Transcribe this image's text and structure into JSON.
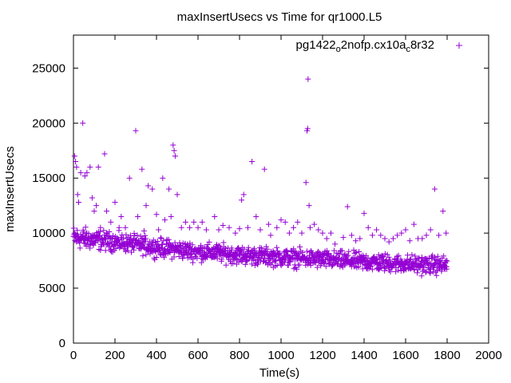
{
  "chart_data": {
    "type": "scatter",
    "title": "maxInsertUsecs vs Time for qr1000.L5",
    "xlabel": "Time(s)",
    "ylabel": "maxInsertUsecs",
    "xlim": [
      0,
      2000
    ],
    "ylim": [
      0,
      28000
    ],
    "xticks": [
      "0",
      "200",
      "400",
      "600",
      "800",
      "1000",
      "1200",
      "1400",
      "1600",
      "1800",
      "2000"
    ],
    "yticks": [
      "0",
      "5000",
      "10000",
      "15000",
      "20000",
      "25000"
    ],
    "grid": false,
    "legend_position": "top-right",
    "marker": "+",
    "series": [
      {
        "name_parts": [
          "pg1422",
          "o",
          "2nofp.cx10a",
          "c",
          "8r32"
        ],
        "color": "#9400d3",
        "points": [
          [
            5,
            17000
          ],
          [
            10,
            16500
          ],
          [
            15,
            16000
          ],
          [
            20,
            13500
          ],
          [
            25,
            12800
          ],
          [
            35,
            15500
          ],
          [
            45,
            20000
          ],
          [
            55,
            15200
          ],
          [
            65,
            15500
          ],
          [
            80,
            16000
          ],
          [
            90,
            13200
          ],
          [
            100,
            12000
          ],
          [
            110,
            12500
          ],
          [
            120,
            16000
          ],
          [
            130,
            10500
          ],
          [
            150,
            17200
          ],
          [
            160,
            12000
          ],
          [
            180,
            11000
          ],
          [
            200,
            12800
          ],
          [
            220,
            10500
          ],
          [
            230,
            11500
          ],
          [
            250,
            10500
          ],
          [
            270,
            15000
          ],
          [
            300,
            19300
          ],
          [
            310,
            11500
          ],
          [
            330,
            15800
          ],
          [
            340,
            10200
          ],
          [
            350,
            12500
          ],
          [
            360,
            14300
          ],
          [
            380,
            14000
          ],
          [
            400,
            11700
          ],
          [
            410,
            10300
          ],
          [
            430,
            15000
          ],
          [
            440,
            11200
          ],
          [
            460,
            14000
          ],
          [
            470,
            11500
          ],
          [
            480,
            18000
          ],
          [
            485,
            17500
          ],
          [
            490,
            17000
          ],
          [
            500,
            13500
          ],
          [
            520,
            10500
          ],
          [
            540,
            11000
          ],
          [
            560,
            10500
          ],
          [
            580,
            11000
          ],
          [
            600,
            10500
          ],
          [
            620,
            11000
          ],
          [
            640,
            10300
          ],
          [
            680,
            11500
          ],
          [
            700,
            10300
          ],
          [
            720,
            10700
          ],
          [
            750,
            10500
          ],
          [
            780,
            10000
          ],
          [
            800,
            10400
          ],
          [
            810,
            13000
          ],
          [
            820,
            13500
          ],
          [
            840,
            10500
          ],
          [
            860,
            16500
          ],
          [
            880,
            11500
          ],
          [
            900,
            10300
          ],
          [
            920,
            15800
          ],
          [
            940,
            10800
          ],
          [
            950,
            9800
          ],
          [
            980,
            10500
          ],
          [
            1000,
            11200
          ],
          [
            1020,
            11000
          ],
          [
            1040,
            10000
          ],
          [
            1060,
            10500
          ],
          [
            1080,
            11000
          ],
          [
            1100,
            10000
          ],
          [
            1120,
            14600
          ],
          [
            1125,
            19300
          ],
          [
            1128,
            19500
          ],
          [
            1130,
            24000
          ],
          [
            1135,
            12500
          ],
          [
            1140,
            10500
          ],
          [
            1160,
            10800
          ],
          [
            1180,
            10300
          ],
          [
            1200,
            10000
          ],
          [
            1220,
            9500
          ],
          [
            1240,
            10000
          ],
          [
            1260,
            9000
          ],
          [
            1300,
            9600
          ],
          [
            1320,
            12400
          ],
          [
            1340,
            9800
          ],
          [
            1360,
            9300
          ],
          [
            1380,
            9500
          ],
          [
            1400,
            11800
          ],
          [
            1420,
            10500
          ],
          [
            1440,
            9800
          ],
          [
            1460,
            10300
          ],
          [
            1480,
            9800
          ],
          [
            1500,
            9500
          ],
          [
            1520,
            9200
          ],
          [
            1540,
            9500
          ],
          [
            1560,
            9800
          ],
          [
            1580,
            10000
          ],
          [
            1600,
            10300
          ],
          [
            1620,
            9300
          ],
          [
            1640,
            10800
          ],
          [
            1660,
            9500
          ],
          [
            1680,
            9500
          ],
          [
            1700,
            9800
          ],
          [
            1720,
            10300
          ],
          [
            1740,
            14000
          ],
          [
            1760,
            9800
          ],
          [
            1780,
            12000
          ],
          [
            1795,
            10000
          ]
        ],
        "band": [
          [
            0,
            9600,
            1000
          ],
          [
            100,
            9400,
            900
          ],
          [
            200,
            9200,
            800
          ],
          [
            300,
            9000,
            800
          ],
          [
            400,
            8700,
            800
          ],
          [
            500,
            8500,
            800
          ],
          [
            600,
            8300,
            800
          ],
          [
            700,
            8200,
            800
          ],
          [
            800,
            8000,
            800
          ],
          [
            900,
            7900,
            800
          ],
          [
            1000,
            7800,
            800
          ],
          [
            1100,
            7700,
            800
          ],
          [
            1200,
            7600,
            800
          ],
          [
            1300,
            7500,
            800
          ],
          [
            1400,
            7400,
            800
          ],
          [
            1500,
            7300,
            800
          ],
          [
            1600,
            7200,
            800
          ],
          [
            1700,
            7100,
            800
          ],
          [
            1800,
            7100,
            800
          ]
        ]
      }
    ]
  }
}
